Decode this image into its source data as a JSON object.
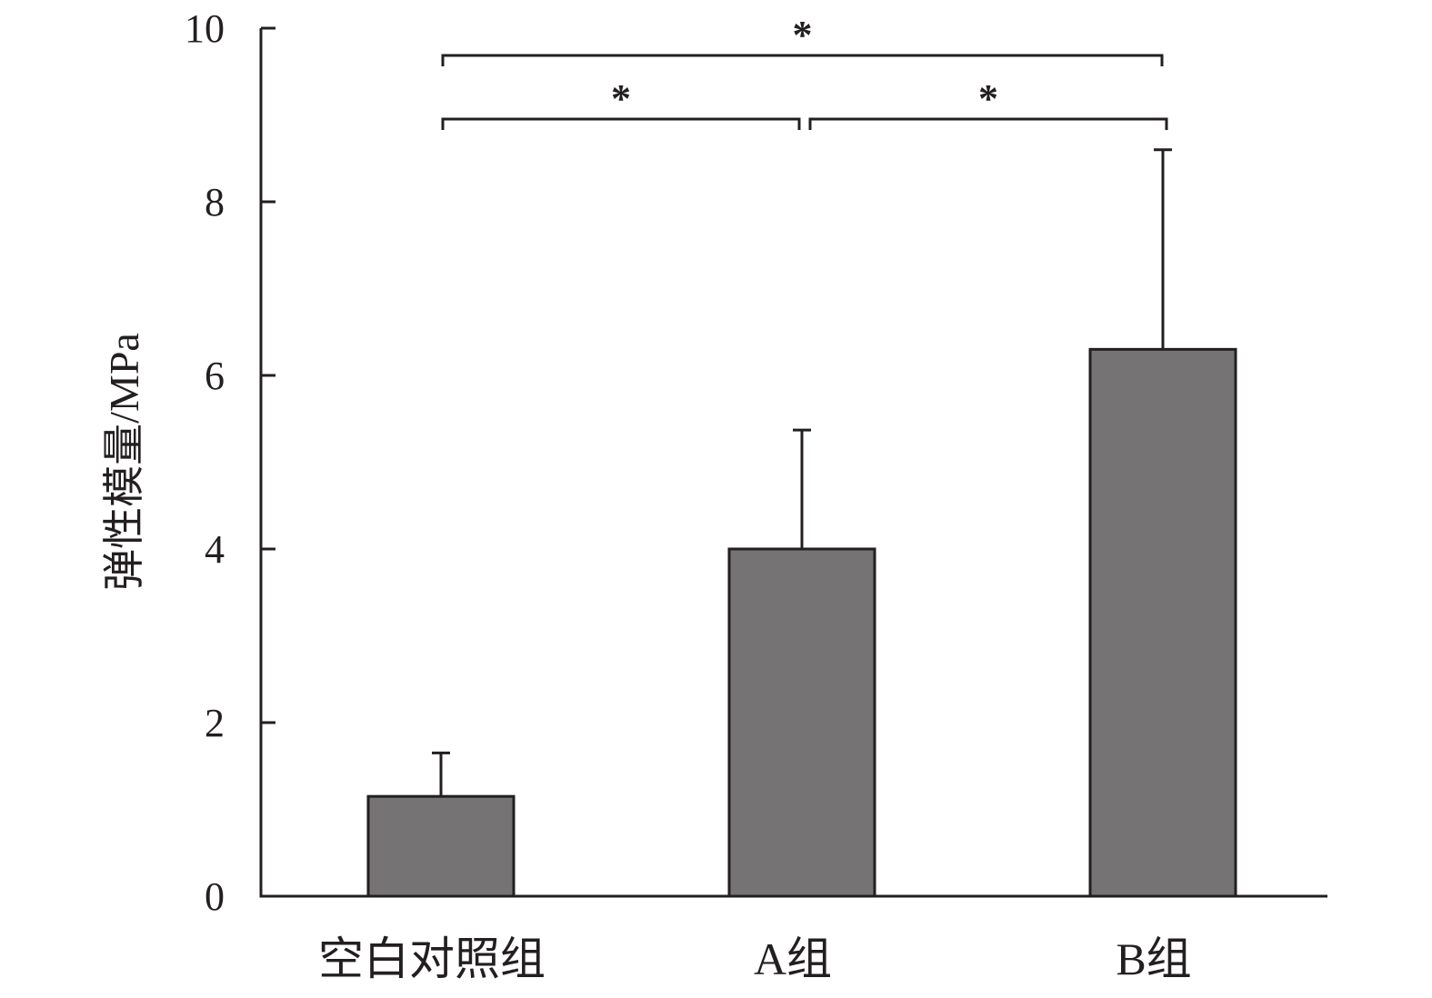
{
  "chart_data": {
    "type": "bar",
    "categories": [
      "空白对照组",
      "A组",
      "B组"
    ],
    "values": [
      1.15,
      4.0,
      6.3
    ],
    "error": [
      0.5,
      1.37,
      2.3
    ],
    "ylabel": "弹性模量/MPa",
    "xlabel": "",
    "ylim": [
      0,
      10
    ],
    "yticks": [
      "0",
      "2",
      "4",
      "6",
      "8",
      "10"
    ],
    "grid": false,
    "colors": {
      "bar": "#767374",
      "stroke": "#231f20"
    },
    "significance": [
      {
        "from": 0,
        "to": 1,
        "label": "*",
        "level": 1
      },
      {
        "from": 1,
        "to": 2,
        "label": "*",
        "level": 1
      },
      {
        "from": 0,
        "to": 2,
        "label": "*",
        "level": 2
      }
    ]
  }
}
